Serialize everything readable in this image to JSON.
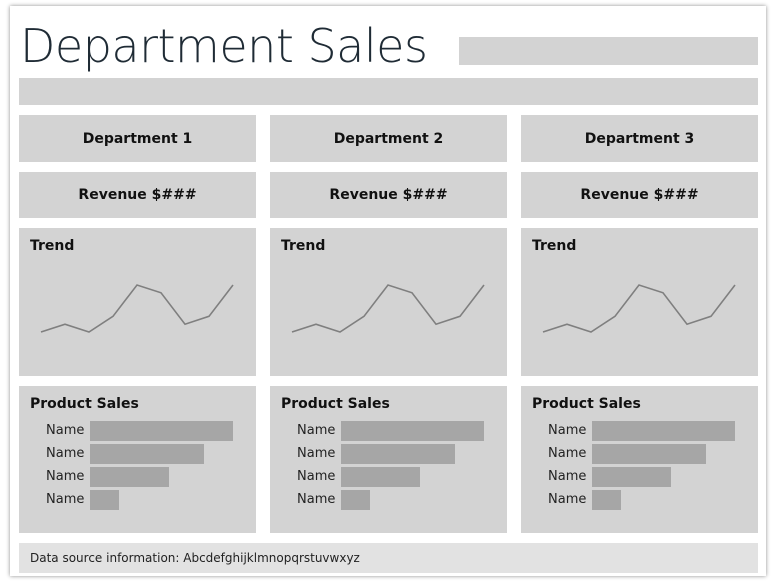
{
  "title": "Department Sales",
  "departments": [
    {
      "name": "Department 1",
      "revenue": "Revenue $###",
      "trend_label": "Trend",
      "trend_values": [
        2,
        3,
        2,
        4,
        8,
        7,
        3,
        4,
        8
      ],
      "product_label": "Product Sales",
      "products": [
        {
          "name": "Name",
          "value": 1.0
        },
        {
          "name": "Name",
          "value": 0.8
        },
        {
          "name": "Name",
          "value": 0.55
        },
        {
          "name": "Name",
          "value": 0.2
        }
      ]
    },
    {
      "name": "Department 2",
      "revenue": "Revenue $###",
      "trend_label": "Trend",
      "trend_values": [
        2,
        3,
        2,
        4,
        8,
        7,
        3,
        4,
        8
      ],
      "product_label": "Product Sales",
      "products": [
        {
          "name": "Name",
          "value": 1.0
        },
        {
          "name": "Name",
          "value": 0.8
        },
        {
          "name": "Name",
          "value": 0.55
        },
        {
          "name": "Name",
          "value": 0.2
        }
      ]
    },
    {
      "name": "Department 3",
      "revenue": "Revenue $###",
      "trend_label": "Trend",
      "trend_values": [
        2,
        3,
        2,
        4,
        8,
        7,
        3,
        4,
        8
      ],
      "product_label": "Product Sales",
      "products": [
        {
          "name": "Name",
          "value": 1.0
        },
        {
          "name": "Name",
          "value": 0.8
        },
        {
          "name": "Name",
          "value": 0.55
        },
        {
          "name": "Name",
          "value": 0.2
        }
      ]
    }
  ],
  "footer": "Data source information: Abcdefghijklmnopqrstuvwxyz",
  "colors": {
    "placeholder": "#d3d3d3",
    "bar": "#a6a6a6",
    "trend_line": "#7f7f7f",
    "title": "#1f2b35"
  }
}
